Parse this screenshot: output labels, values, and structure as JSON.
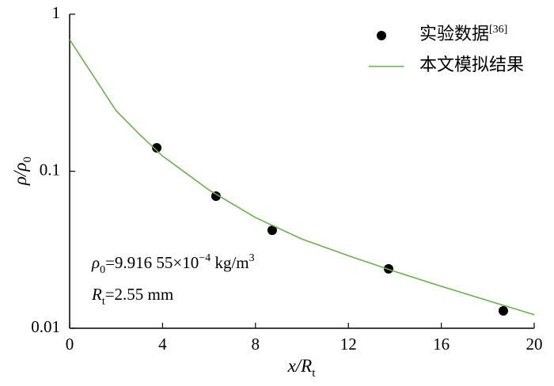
{
  "chart_data": {
    "type": "line",
    "ylabel": [
      "ρ/ρ",
      "0"
    ],
    "xlabel": [
      "x/R",
      "t"
    ],
    "annotation": [
      [
        "ρ",
        "0",
        "=9.916 55×10",
        "−4",
        " kg/m",
        "3"
      ],
      [
        "R",
        "t",
        "=2.55 mm"
      ]
    ],
    "series": [
      {
        "name": "实验数据",
        "citation": "[36]",
        "type": "scatter",
        "color": "#000000",
        "x": [
          3.75,
          6.3,
          8.72,
          13.73,
          18.67
        ],
        "values": [
          0.141,
          0.0694,
          0.0421,
          0.0239,
          0.0129
        ]
      },
      {
        "name": "本文模拟结果",
        "type": "line",
        "color": "#6ab04c",
        "x": [
          0,
          0.5,
          1,
          2,
          3,
          4,
          6,
          8,
          10,
          12,
          14,
          16,
          18,
          20
        ],
        "values": [
          0.69,
          0.53,
          0.41,
          0.243,
          0.172,
          0.125,
          0.076,
          0.0507,
          0.037,
          0.029,
          0.023,
          0.0185,
          0.015,
          0.0122
        ]
      }
    ],
    "xlim": [
      0,
      20
    ],
    "xticks": [
      0,
      4,
      8,
      12,
      16,
      20
    ],
    "ylim": [
      0.01,
      1
    ],
    "yticks": [
      0.01,
      0.1,
      1
    ],
    "log_y": true,
    "legend": "upper right"
  }
}
